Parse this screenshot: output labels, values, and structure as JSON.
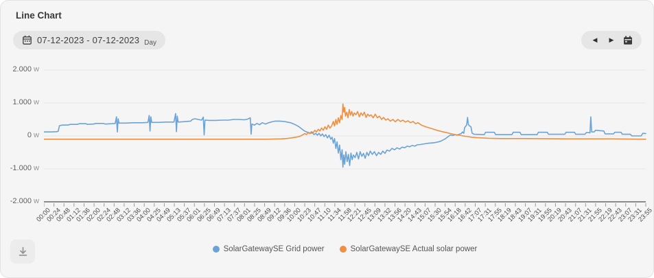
{
  "header": {
    "title": "Line Chart"
  },
  "toolbar": {
    "date_range": "07-12-2023 - 07-12-2023",
    "granularity": "Day",
    "prev_icon_glyph": "◀",
    "next_icon_glyph": "▶"
  },
  "icons": {
    "date_pill_calendar": "calendar-outline",
    "nav_calendar": "calendar-solid",
    "download": "download-arrow"
  },
  "colors": {
    "card_bg": "#f5f5f6",
    "pill_bg": "#e6e6e7",
    "gridline": "#e8e8ea",
    "axis_line": "#8b8b8b",
    "grid_power_blue": "#6ba3d6",
    "solar_power_orange": "#ee8f41"
  },
  "chart_data": {
    "type": "line",
    "title": "Line Chart",
    "legend_position": "bottom",
    "grid": true,
    "x_axis": {
      "kind": "time",
      "range_minutes": [
        0,
        1435
      ],
      "tick_labels": [
        "00:00",
        "00:24",
        "00:48",
        "01:12",
        "01:36",
        "02:00",
        "02:24",
        "02:48",
        "03:12",
        "03:36",
        "04:00",
        "04:25",
        "04:49",
        "05:13",
        "05:37",
        "06:01",
        "06:25",
        "06:49",
        "07:13",
        "07:37",
        "08:01",
        "08:25",
        "08:49",
        "09:12",
        "09:36",
        "10:00",
        "10:23",
        "10:47",
        "11:10",
        "11:34",
        "11:58",
        "12:21",
        "12:45",
        "13:09",
        "13:32",
        "13:56",
        "14:20",
        "14:43",
        "15:07",
        "15:30",
        "15:54",
        "16:18",
        "16:42",
        "17:07",
        "17:31",
        "17:55",
        "18:19",
        "18:43",
        "19:07",
        "19:31",
        "19:55",
        "20:19",
        "20:43",
        "21:07",
        "21:31",
        "21:55",
        "22:19",
        "22:43",
        "23:07",
        "23:31",
        "23:55"
      ]
    },
    "y_axis": {
      "unit": "W",
      "tick_labels": [
        "2.000",
        "1.000",
        "0",
        "-1.000",
        "-2.000"
      ],
      "tick_values": [
        2000,
        1000,
        0,
        -1000,
        -2000
      ],
      "ylim": [
        -2000,
        2000
      ]
    },
    "series": [
      {
        "name": "SolarGatewaySE Grid power",
        "color": "#6ba3d6",
        "unit": "W",
        "points": [
          [
            0,
            120
          ],
          [
            18,
            120
          ],
          [
            30,
            130
          ],
          [
            34,
            140
          ],
          [
            37,
            310
          ],
          [
            44,
            330
          ],
          [
            58,
            330
          ],
          [
            62,
            350
          ],
          [
            80,
            350
          ],
          [
            84,
            370
          ],
          [
            100,
            370
          ],
          [
            104,
            350
          ],
          [
            118,
            360
          ],
          [
            124,
            380
          ],
          [
            142,
            380
          ],
          [
            146,
            360
          ],
          [
            162,
            370
          ],
          [
            170,
            380
          ],
          [
            173,
            580
          ],
          [
            175,
            120
          ],
          [
            177,
            520
          ],
          [
            179,
            390
          ],
          [
            196,
            390
          ],
          [
            214,
            400
          ],
          [
            236,
            400
          ],
          [
            248,
            410
          ],
          [
            251,
            620
          ],
          [
            253,
            150
          ],
          [
            255,
            580
          ],
          [
            257,
            410
          ],
          [
            274,
            410
          ],
          [
            292,
            420
          ],
          [
            310,
            420
          ],
          [
            314,
            680
          ],
          [
            316,
            130
          ],
          [
            318,
            600
          ],
          [
            320,
            420
          ],
          [
            330,
            430
          ],
          [
            340,
            440
          ],
          [
            350,
            450
          ],
          [
            354,
            500
          ],
          [
            360,
            520
          ],
          [
            368,
            500
          ],
          [
            376,
            480
          ],
          [
            380,
            570
          ],
          [
            382,
            30
          ],
          [
            384,
            480
          ],
          [
            395,
            470
          ],
          [
            410,
            470
          ],
          [
            425,
            480
          ],
          [
            440,
            480
          ],
          [
            452,
            500
          ],
          [
            465,
            500
          ],
          [
            478,
            490
          ],
          [
            486,
            510
          ],
          [
            492,
            550
          ],
          [
            494,
            50
          ],
          [
            496,
            360
          ],
          [
            502,
            330
          ],
          [
            508,
            380
          ],
          [
            514,
            340
          ],
          [
            521,
            400
          ],
          [
            528,
            360
          ],
          [
            536,
            400
          ],
          [
            544,
            430
          ],
          [
            552,
            450
          ],
          [
            562,
            450
          ],
          [
            572,
            440
          ],
          [
            580,
            420
          ],
          [
            588,
            400
          ],
          [
            596,
            360
          ],
          [
            602,
            320
          ],
          [
            608,
            280
          ],
          [
            614,
            220
          ],
          [
            620,
            160
          ],
          [
            626,
            120
          ],
          [
            632,
            100
          ],
          [
            636,
            80
          ],
          [
            640,
            100
          ],
          [
            644,
            40
          ],
          [
            648,
            80
          ],
          [
            652,
            20
          ],
          [
            656,
            80
          ],
          [
            660,
            0
          ],
          [
            664,
            60
          ],
          [
            668,
            -20
          ],
          [
            672,
            40
          ],
          [
            676,
            -60
          ],
          [
            680,
            20
          ],
          [
            684,
            -100
          ],
          [
            687,
            -40
          ],
          [
            690,
            -220
          ],
          [
            693,
            -80
          ],
          [
            696,
            -380
          ],
          [
            699,
            -180
          ],
          [
            702,
            -520
          ],
          [
            705,
            -280
          ],
          [
            708,
            -720
          ],
          [
            711,
            -420
          ],
          [
            713,
            -950
          ],
          [
            715,
            -580
          ],
          [
            717,
            -860
          ],
          [
            720,
            -480
          ],
          [
            723,
            -780
          ],
          [
            726,
            -560
          ],
          [
            729,
            -900
          ],
          [
            732,
            -520
          ],
          [
            735,
            -720
          ],
          [
            738,
            -580
          ],
          [
            742,
            -660
          ],
          [
            746,
            -500
          ],
          [
            750,
            -700
          ],
          [
            754,
            -480
          ],
          [
            758,
            -620
          ],
          [
            762,
            -530
          ],
          [
            766,
            -680
          ],
          [
            770,
            -500
          ],
          [
            774,
            -600
          ],
          [
            778,
            -460
          ],
          [
            783,
            -560
          ],
          [
            788,
            -480
          ],
          [
            793,
            -600
          ],
          [
            798,
            -500
          ],
          [
            803,
            -560
          ],
          [
            808,
            -460
          ],
          [
            813,
            -530
          ],
          [
            818,
            -430
          ],
          [
            824,
            -460
          ],
          [
            830,
            -380
          ],
          [
            836,
            -420
          ],
          [
            842,
            -360
          ],
          [
            848,
            -400
          ],
          [
            854,
            -340
          ],
          [
            860,
            -360
          ],
          [
            866,
            -310
          ],
          [
            872,
            -330
          ],
          [
            878,
            -290
          ],
          [
            884,
            -310
          ],
          [
            890,
            -270
          ],
          [
            898,
            -260
          ],
          [
            908,
            -240
          ],
          [
            918,
            -220
          ],
          [
            928,
            -210
          ],
          [
            938,
            -190
          ],
          [
            946,
            -160
          ],
          [
            952,
            -120
          ],
          [
            958,
            -80
          ],
          [
            962,
            -40
          ],
          [
            966,
            0
          ],
          [
            970,
            30
          ],
          [
            975,
            10
          ],
          [
            980,
            40
          ],
          [
            985,
            20
          ],
          [
            990,
            50
          ],
          [
            995,
            70
          ],
          [
            998,
            120
          ],
          [
            1001,
            80
          ],
          [
            1003,
            250
          ],
          [
            1006,
            300
          ],
          [
            1008,
            330
          ],
          [
            1010,
            560
          ],
          [
            1012,
            350
          ],
          [
            1015,
            300
          ],
          [
            1018,
            280
          ],
          [
            1021,
            80
          ],
          [
            1026,
            50
          ],
          [
            1050,
            40
          ],
          [
            1053,
            110
          ],
          [
            1074,
            110
          ],
          [
            1077,
            40
          ],
          [
            1116,
            40
          ],
          [
            1119,
            110
          ],
          [
            1135,
            110
          ],
          [
            1138,
            40
          ],
          [
            1176,
            40
          ],
          [
            1179,
            110
          ],
          [
            1200,
            110
          ],
          [
            1203,
            50
          ],
          [
            1242,
            50
          ],
          [
            1245,
            110
          ],
          [
            1265,
            110
          ],
          [
            1268,
            50
          ],
          [
            1290,
            50
          ],
          [
            1293,
            100
          ],
          [
            1300,
            100
          ],
          [
            1302,
            90
          ],
          [
            1304,
            580
          ],
          [
            1306,
            120
          ],
          [
            1312,
            120
          ],
          [
            1315,
            170
          ],
          [
            1335,
            150
          ],
          [
            1338,
            60
          ],
          [
            1358,
            60
          ],
          [
            1361,
            110
          ],
          [
            1376,
            110
          ],
          [
            1379,
            50
          ],
          [
            1398,
            50
          ],
          [
            1402,
            0
          ],
          [
            1424,
            0
          ],
          [
            1428,
            80
          ],
          [
            1435,
            70
          ]
        ]
      },
      {
        "name": "SolarGatewaySE Actual solar power",
        "color": "#ee8f41",
        "unit": "W",
        "points": [
          [
            0,
            -100
          ],
          [
            150,
            -100
          ],
          [
            300,
            -100
          ],
          [
            450,
            -100
          ],
          [
            530,
            -100
          ],
          [
            550,
            -95
          ],
          [
            565,
            -90
          ],
          [
            578,
            -80
          ],
          [
            590,
            -60
          ],
          [
            600,
            -40
          ],
          [
            608,
            -20
          ],
          [
            614,
            10
          ],
          [
            618,
            40
          ],
          [
            622,
            70
          ],
          [
            626,
            40
          ],
          [
            630,
            100
          ],
          [
            634,
            70
          ],
          [
            638,
            130
          ],
          [
            642,
            100
          ],
          [
            646,
            170
          ],
          [
            650,
            120
          ],
          [
            654,
            200
          ],
          [
            658,
            150
          ],
          [
            662,
            240
          ],
          [
            666,
            170
          ],
          [
            670,
            280
          ],
          [
            674,
            200
          ],
          [
            678,
            330
          ],
          [
            682,
            240
          ],
          [
            686,
            300
          ],
          [
            690,
            440
          ],
          [
            693,
            300
          ],
          [
            696,
            500
          ],
          [
            699,
            350
          ],
          [
            702,
            550
          ],
          [
            705,
            400
          ],
          [
            708,
            620
          ],
          [
            711,
            500
          ],
          [
            713,
            970
          ],
          [
            715,
            720
          ],
          [
            717,
            860
          ],
          [
            719,
            600
          ],
          [
            722,
            720
          ],
          [
            725,
            550
          ],
          [
            728,
            800
          ],
          [
            731,
            630
          ],
          [
            734,
            740
          ],
          [
            737,
            600
          ],
          [
            740,
            700
          ],
          [
            744,
            640
          ],
          [
            748,
            740
          ],
          [
            752,
            580
          ],
          [
            756,
            700
          ],
          [
            760,
            620
          ],
          [
            764,
            720
          ],
          [
            768,
            560
          ],
          [
            772,
            660
          ],
          [
            776,
            600
          ],
          [
            780,
            640
          ],
          [
            785,
            550
          ],
          [
            790,
            660
          ],
          [
            795,
            550
          ],
          [
            800,
            600
          ],
          [
            805,
            500
          ],
          [
            810,
            560
          ],
          [
            815,
            480
          ],
          [
            820,
            520
          ],
          [
            826,
            450
          ],
          [
            832,
            500
          ],
          [
            838,
            430
          ],
          [
            844,
            500
          ],
          [
            850,
            440
          ],
          [
            856,
            480
          ],
          [
            862,
            420
          ],
          [
            868,
            460
          ],
          [
            874,
            400
          ],
          [
            880,
            440
          ],
          [
            886,
            370
          ],
          [
            892,
            400
          ],
          [
            900,
            330
          ],
          [
            910,
            280
          ],
          [
            920,
            240
          ],
          [
            930,
            200
          ],
          [
            940,
            160
          ],
          [
            950,
            130
          ],
          [
            960,
            100
          ],
          [
            970,
            70
          ],
          [
            980,
            40
          ],
          [
            990,
            20
          ],
          [
            1000,
            0
          ],
          [
            1010,
            -20
          ],
          [
            1020,
            -40
          ],
          [
            1030,
            -50
          ],
          [
            1045,
            -60
          ],
          [
            1060,
            -70
          ],
          [
            1090,
            -80
          ],
          [
            1150,
            -80
          ],
          [
            1250,
            -90
          ],
          [
            1350,
            -90
          ],
          [
            1435,
            -100
          ]
        ]
      }
    ]
  }
}
